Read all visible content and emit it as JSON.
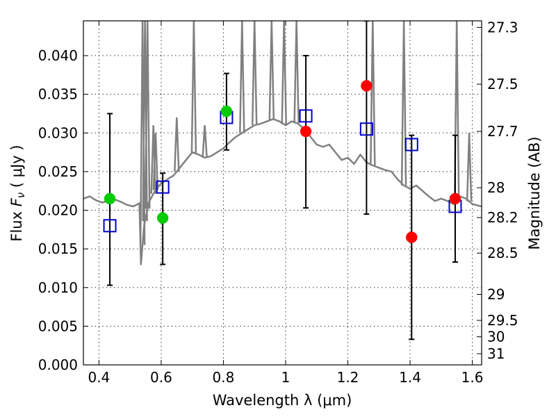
{
  "chart_data": {
    "type": "scatter",
    "title": "",
    "xlabel": "Wavelength  λ (μm)",
    "ylabel": "Flux  Fν  ( μJy )",
    "y2label": "Magnitude (AB)",
    "xlim": [
      0.35,
      1.63
    ],
    "ylim": [
      0.0,
      0.0445
    ],
    "grid": true,
    "x_ticks": [
      {
        "value": 0.4,
        "label": "0.4"
      },
      {
        "value": 0.6,
        "label": "0.6"
      },
      {
        "value": 0.8,
        "label": "0.8"
      },
      {
        "value": 1.0,
        "label": "1"
      },
      {
        "value": 1.2,
        "label": "1.2"
      },
      {
        "value": 1.4,
        "label": "1.4"
      },
      {
        "value": 1.6,
        "label": "1.6"
      }
    ],
    "y_ticks": [
      {
        "value": 0.0,
        "label": "0.000"
      },
      {
        "value": 0.005,
        "label": "0.005"
      },
      {
        "value": 0.01,
        "label": "0.010"
      },
      {
        "value": 0.015,
        "label": "0.015"
      },
      {
        "value": 0.02,
        "label": "0.020"
      },
      {
        "value": 0.025,
        "label": "0.025"
      },
      {
        "value": 0.03,
        "label": "0.030"
      },
      {
        "value": 0.035,
        "label": "0.035"
      },
      {
        "value": 0.04,
        "label": "0.040"
      }
    ],
    "y2_ticks": [
      {
        "mag": 27.3,
        "label": "27.3"
      },
      {
        "mag": 27.5,
        "label": "27.5"
      },
      {
        "mag": 27.7,
        "label": "27.7"
      },
      {
        "mag": 28.0,
        "label": "28"
      },
      {
        "mag": 28.2,
        "label": "28.2"
      },
      {
        "mag": 28.5,
        "label": "28.5"
      },
      {
        "mag": 29.0,
        "label": "29"
      },
      {
        "mag": 29.5,
        "label": "29.5"
      },
      {
        "mag": 30.0,
        "label": "30"
      },
      {
        "mag": 31.0,
        "label": "31"
      }
    ],
    "model_color": "#808080",
    "model_spectrum": {
      "x": [
        0.35,
        0.37,
        0.39,
        0.41,
        0.43,
        0.45,
        0.47,
        0.49,
        0.51,
        0.53,
        0.535,
        0.545,
        0.56,
        0.58,
        0.6,
        0.62,
        0.64,
        0.66,
        0.68,
        0.7,
        0.72,
        0.74,
        0.76,
        0.78,
        0.8,
        0.82,
        0.84,
        0.86,
        0.88,
        0.9,
        0.92,
        0.94,
        0.96,
        0.98,
        1.0,
        1.02,
        1.04,
        1.06,
        1.08,
        1.1,
        1.12,
        1.14,
        1.16,
        1.18,
        1.2,
        1.22,
        1.24,
        1.26,
        1.28,
        1.3,
        1.32,
        1.34,
        1.36,
        1.38,
        1.4,
        1.42,
        1.44,
        1.46,
        1.48,
        1.5,
        1.52,
        1.54,
        1.56,
        1.58,
        1.6,
        1.63
      ],
      "y": [
        0.0215,
        0.0218,
        0.0213,
        0.021,
        0.0212,
        0.0214,
        0.0211,
        0.0207,
        0.0205,
        0.0209,
        0.013,
        0.018,
        0.021,
        0.0225,
        0.0235,
        0.024,
        0.0245,
        0.0255,
        0.0265,
        0.0275,
        0.0272,
        0.0268,
        0.027,
        0.0275,
        0.028,
        0.0288,
        0.0295,
        0.03,
        0.0305,
        0.031,
        0.0312,
        0.0315,
        0.0318,
        0.0315,
        0.031,
        0.0315,
        0.0312,
        0.0305,
        0.0295,
        0.0285,
        0.0282,
        0.0285,
        0.0275,
        0.0265,
        0.0268,
        0.026,
        0.0272,
        0.0262,
        0.0258,
        0.0255,
        0.0252,
        0.025,
        0.024,
        0.0232,
        0.0228,
        0.0232,
        0.0225,
        0.0218,
        0.0212,
        0.0215,
        0.0212,
        0.0208,
        0.0218,
        0.0215,
        0.0208,
        0.0205
      ]
    },
    "emission_lines": [
      {
        "x": 0.54,
        "peak": 0.0445
      },
      {
        "x": 0.548,
        "peak": 0.0445
      },
      {
        "x": 0.556,
        "peak": 0.0445
      },
      {
        "x": 0.575,
        "peak": 0.031
      },
      {
        "x": 0.582,
        "peak": 0.03
      },
      {
        "x": 0.65,
        "peak": 0.032
      },
      {
        "x": 0.705,
        "peak": 0.0445
      },
      {
        "x": 0.74,
        "peak": 0.031
      },
      {
        "x": 0.86,
        "peak": 0.0445
      },
      {
        "x": 0.9,
        "peak": 0.0445
      },
      {
        "x": 0.955,
        "peak": 0.0445
      },
      {
        "x": 0.995,
        "peak": 0.0445
      },
      {
        "x": 1.035,
        "peak": 0.0445
      },
      {
        "x": 1.28,
        "peak": 0.0445
      },
      {
        "x": 1.38,
        "peak": 0.0445
      },
      {
        "x": 1.55,
        "peak": 0.0445
      },
      {
        "x": 1.59,
        "peak": 0.03
      }
    ],
    "model_points": {
      "color": "#0000cc",
      "x": [
        0.435,
        0.605,
        0.81,
        1.065,
        1.26,
        1.405,
        1.545
      ],
      "y": [
        0.018,
        0.023,
        0.032,
        0.0322,
        0.0305,
        0.0285,
        0.0205
      ]
    },
    "observed_points": [
      {
        "x": 0.435,
        "y": 0.0215,
        "err_low": 0.0103,
        "err_high": 0.0325,
        "color": "#00cc00"
      },
      {
        "x": 0.605,
        "y": 0.019,
        "err_low": 0.013,
        "err_high": 0.0248,
        "color": "#00cc00"
      },
      {
        "x": 0.81,
        "y": 0.0328,
        "err_low": 0.0278,
        "err_high": 0.0377,
        "color": "#00cc00"
      },
      {
        "x": 1.065,
        "y": 0.0302,
        "err_low": 0.0203,
        "err_high": 0.04,
        "color": "#ff0000"
      },
      {
        "x": 1.26,
        "y": 0.0361,
        "err_low": 0.0195,
        "err_high": 0.0445,
        "color": "#ff0000"
      },
      {
        "x": 1.405,
        "y": 0.0165,
        "err_low": 0.0033,
        "err_high": 0.0297,
        "color": "#ff0000"
      },
      {
        "x": 1.545,
        "y": 0.0215,
        "err_low": 0.0133,
        "err_high": 0.0297,
        "color": "#ff0000"
      }
    ]
  }
}
